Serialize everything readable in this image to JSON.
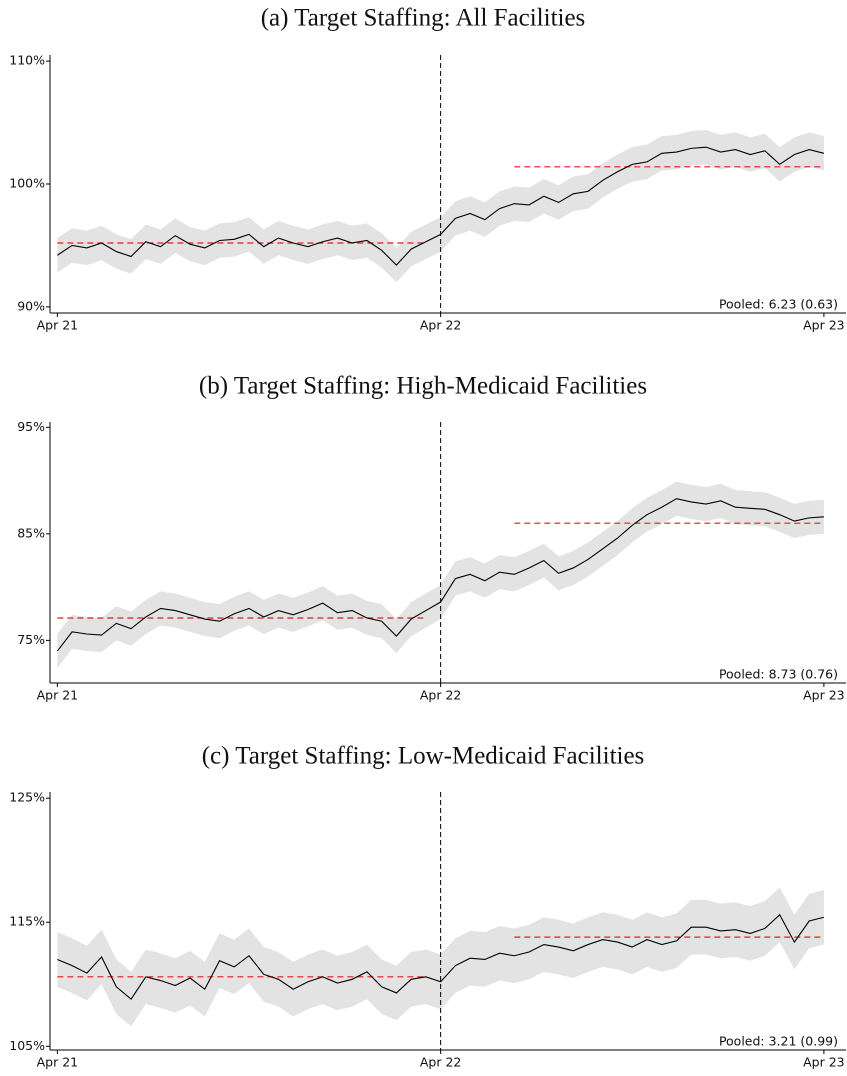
{
  "chart_data": [
    {
      "type": "line",
      "title": "(a) Target Staffing: All Facilities",
      "x": [
        0,
        2,
        4,
        6,
        8,
        10,
        12,
        14,
        16,
        18,
        20,
        22,
        24,
        26,
        28,
        30,
        32,
        34,
        36,
        38,
        40,
        42,
        44,
        46,
        48,
        50,
        52,
        54,
        56,
        58,
        60,
        62,
        64,
        66,
        68,
        70,
        72,
        74,
        76,
        78,
        80,
        82,
        84,
        86,
        88,
        90,
        92,
        94,
        96,
        98,
        100,
        102,
        104
      ],
      "series": [
        {
          "color": "#000000",
          "band_color": "#e3e3e3",
          "values": [
            94.2,
            95.0,
            94.8,
            95.2,
            94.5,
            94.1,
            95.3,
            94.9,
            95.8,
            95.1,
            94.8,
            95.4,
            95.5,
            95.9,
            94.9,
            95.6,
            95.2,
            94.9,
            95.3,
            95.6,
            95.2,
            95.4,
            94.6,
            93.4,
            94.7,
            95.3,
            95.9,
            97.2,
            97.6,
            97.1,
            98.0,
            98.4,
            98.3,
            99.0,
            98.5,
            99.2,
            99.4,
            100.3,
            101.0,
            101.6,
            101.8,
            102.5,
            102.6,
            102.9,
            103.0,
            102.6,
            102.8,
            102.4,
            102.7,
            101.6,
            102.4,
            102.8,
            102.5
          ],
          "errors": [
            1.4,
            1.4,
            1.4,
            1.4,
            1.4,
            1.4,
            1.4,
            1.4,
            1.4,
            1.4,
            1.4,
            1.4,
            1.4,
            1.4,
            1.4,
            1.4,
            1.4,
            1.4,
            1.4,
            1.4,
            1.4,
            1.4,
            1.4,
            1.4,
            1.4,
            1.4,
            1.4,
            1.4,
            1.4,
            1.4,
            1.4,
            1.4,
            1.4,
            1.4,
            1.4,
            1.4,
            1.4,
            1.4,
            1.4,
            1.4,
            1.4,
            1.4,
            1.4,
            1.4,
            1.4,
            1.4,
            1.4,
            1.4,
            1.4,
            1.4,
            1.4,
            1.4,
            1.4
          ]
        }
      ],
      "reference_lines": [
        {
          "x0": 0,
          "x1": 50,
          "y": 95.2,
          "color": "#e41a1c"
        },
        {
          "x0": 62,
          "x1": 104,
          "y": 101.4,
          "color": "#e41a1c"
        }
      ],
      "event_x": 52,
      "annotation": "Pooled: 6.23 (0.63)",
      "xlim": [
        -1,
        107
      ],
      "ylim": [
        89.5,
        110.5
      ],
      "xticks": [
        {
          "value": 0,
          "label": "Apr 21"
        },
        {
          "value": 52,
          "label": "Apr 22"
        },
        {
          "value": 104,
          "label": "Apr 23"
        }
      ],
      "yticks": [
        {
          "value": 90,
          "label": "90%"
        },
        {
          "value": 100,
          "label": "100%"
        },
        {
          "value": 110,
          "label": "110%"
        }
      ]
    },
    {
      "type": "line",
      "title": "(b) Target Staffing: High-Medicaid Facilities",
      "x": [
        0,
        2,
        4,
        6,
        8,
        10,
        12,
        14,
        16,
        18,
        20,
        22,
        24,
        26,
        28,
        30,
        32,
        34,
        36,
        38,
        40,
        42,
        44,
        46,
        48,
        50,
        52,
        54,
        56,
        58,
        60,
        62,
        64,
        66,
        68,
        70,
        72,
        74,
        76,
        78,
        80,
        82,
        84,
        86,
        88,
        90,
        92,
        94,
        96,
        98,
        100,
        102,
        104
      ],
      "series": [
        {
          "color": "#000000",
          "band_color": "#e3e3e3",
          "values": [
            74.0,
            75.8,
            75.6,
            75.5,
            76.6,
            76.1,
            77.2,
            78.0,
            77.8,
            77.4,
            77.0,
            76.8,
            77.5,
            78.0,
            77.2,
            77.8,
            77.4,
            77.9,
            78.5,
            77.6,
            77.8,
            77.1,
            76.8,
            75.4,
            77.0,
            77.8,
            78.6,
            80.8,
            81.2,
            80.6,
            81.4,
            81.2,
            81.8,
            82.5,
            81.3,
            81.8,
            82.6,
            83.6,
            84.6,
            85.8,
            86.8,
            87.5,
            88.3,
            88.0,
            87.8,
            88.1,
            87.5,
            87.4,
            87.3,
            86.8,
            86.2,
            86.5,
            86.6
          ],
          "errors": [
            1.6,
            1.6,
            1.6,
            1.6,
            1.6,
            1.6,
            1.6,
            1.6,
            1.6,
            1.6,
            1.6,
            1.6,
            1.6,
            1.6,
            1.6,
            1.6,
            1.6,
            1.6,
            1.6,
            1.6,
            1.6,
            1.6,
            1.6,
            1.6,
            1.6,
            1.6,
            1.6,
            1.6,
            1.6,
            1.6,
            1.6,
            1.6,
            1.6,
            1.6,
            1.6,
            1.6,
            1.6,
            1.6,
            1.6,
            1.6,
            1.6,
            1.6,
            1.6,
            1.6,
            1.6,
            1.6,
            1.6,
            1.6,
            1.6,
            1.6,
            1.6,
            1.6,
            1.6
          ]
        }
      ],
      "reference_lines": [
        {
          "x0": 0,
          "x1": 50,
          "y": 77.1,
          "color": "#e41a1c"
        },
        {
          "x0": 62,
          "x1": 104,
          "y": 86.0,
          "color": "#e41a1c"
        }
      ],
      "event_x": 52,
      "annotation": "Pooled: 8.73 (0.76)",
      "xlim": [
        -1,
        107
      ],
      "ylim": [
        71,
        95.5
      ],
      "xticks": [
        {
          "value": 0,
          "label": "Apr 21"
        },
        {
          "value": 52,
          "label": "Apr 22"
        },
        {
          "value": 104,
          "label": "Apr 23"
        }
      ],
      "yticks": [
        {
          "value": 75,
          "label": "75%"
        },
        {
          "value": 85,
          "label": "85%"
        },
        {
          "value": 95,
          "label": "95%"
        }
      ]
    },
    {
      "type": "line",
      "title": "(c) Target Staffing: Low-Medicaid Facilities",
      "x": [
        0,
        2,
        4,
        6,
        8,
        10,
        12,
        14,
        16,
        18,
        20,
        22,
        24,
        26,
        28,
        30,
        32,
        34,
        36,
        38,
        40,
        42,
        44,
        46,
        48,
        50,
        52,
        54,
        56,
        58,
        60,
        62,
        64,
        66,
        68,
        70,
        72,
        74,
        76,
        78,
        80,
        82,
        84,
        86,
        88,
        90,
        92,
        94,
        96,
        98,
        100,
        102,
        104
      ],
      "series": [
        {
          "color": "#000000",
          "band_color": "#e3e3e3",
          "values": [
            112.0,
            111.5,
            110.9,
            112.2,
            109.8,
            108.8,
            110.6,
            110.3,
            109.9,
            110.5,
            109.6,
            111.9,
            111.4,
            112.3,
            110.8,
            110.4,
            109.6,
            110.2,
            110.6,
            110.1,
            110.4,
            111.0,
            109.8,
            109.3,
            110.4,
            110.6,
            110.2,
            111.5,
            112.1,
            112.0,
            112.5,
            112.3,
            112.6,
            113.2,
            113.0,
            112.7,
            113.2,
            113.6,
            113.4,
            113.0,
            113.6,
            113.2,
            113.5,
            114.6,
            114.6,
            114.3,
            114.4,
            114.1,
            114.5,
            115.6,
            113.4,
            115.1,
            115.4
          ],
          "errors": [
            2.2,
            2.2,
            2.2,
            2.2,
            2.2,
            2.2,
            2.2,
            2.2,
            2.2,
            2.2,
            2.2,
            2.2,
            2.2,
            2.2,
            2.2,
            2.2,
            2.2,
            2.2,
            2.2,
            2.2,
            2.2,
            2.2,
            2.2,
            2.2,
            2.2,
            2.2,
            2.2,
            2.2,
            2.2,
            2.2,
            2.2,
            2.2,
            2.2,
            2.2,
            2.2,
            2.2,
            2.2,
            2.2,
            2.2,
            2.2,
            2.2,
            2.2,
            2.2,
            2.2,
            2.2,
            2.2,
            2.2,
            2.2,
            2.2,
            2.2,
            2.2,
            2.2,
            2.2
          ]
        }
      ],
      "reference_lines": [
        {
          "x0": 0,
          "x1": 50,
          "y": 110.6,
          "color": "#e41a1c"
        },
        {
          "x0": 62,
          "x1": 104,
          "y": 113.8,
          "color": "#e41a1c"
        }
      ],
      "event_x": 52,
      "annotation": "Pooled: 3.21 (0.99)",
      "xlim": [
        -1,
        107
      ],
      "ylim": [
        104.7,
        125.5
      ],
      "xticks": [
        {
          "value": 0,
          "label": "Apr 21"
        },
        {
          "value": 52,
          "label": "Apr 22"
        },
        {
          "value": 104,
          "label": "Apr 23"
        }
      ],
      "yticks": [
        {
          "value": 105,
          "label": "105%"
        },
        {
          "value": 115,
          "label": "115%"
        },
        {
          "value": 125,
          "label": "125%"
        }
      ]
    }
  ]
}
